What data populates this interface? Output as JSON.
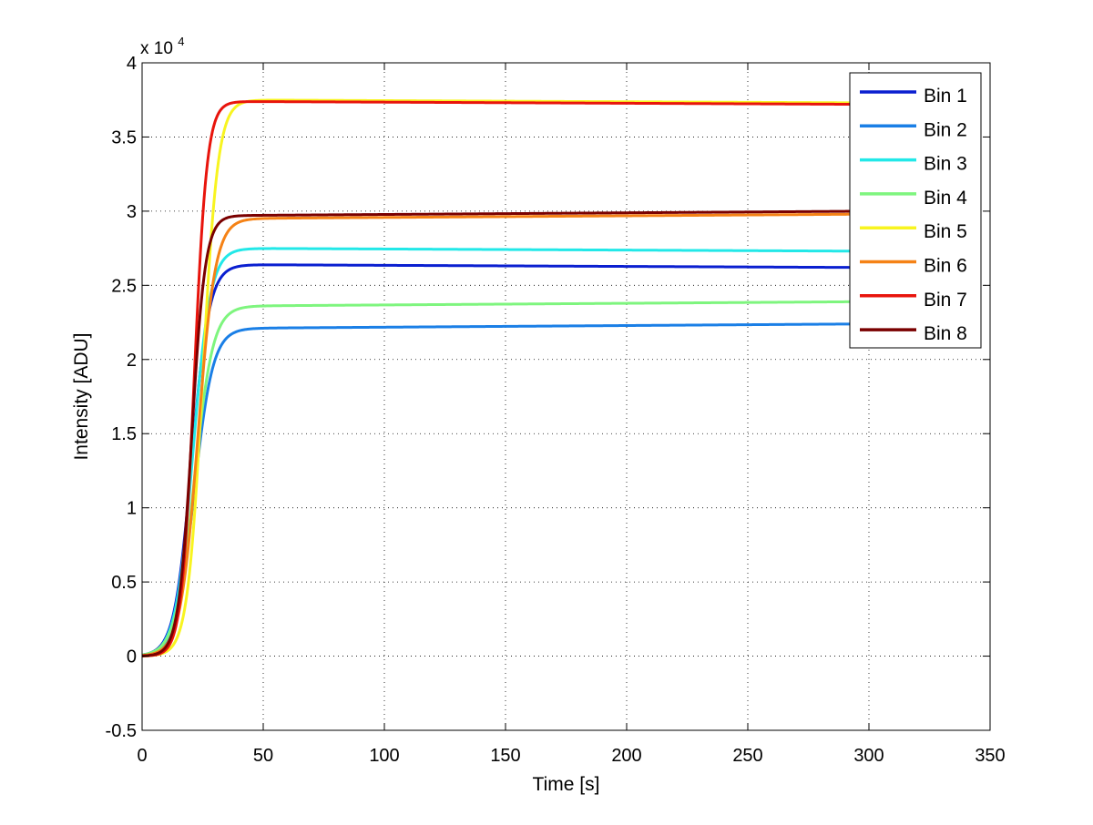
{
  "chart_data": {
    "type": "line",
    "title": "",
    "xlabel": "Time [s]",
    "ylabel": "Intensity [ADU]",
    "y_exponent_label": "x 10",
    "y_exponent": "4",
    "xlim": [
      0,
      350
    ],
    "ylim": [
      -0.5,
      4
    ],
    "xticks": [
      0,
      50,
      100,
      150,
      200,
      250,
      300,
      350
    ],
    "yticks": [
      -0.5,
      0,
      0.5,
      1,
      1.5,
      2,
      2.5,
      3,
      3.5,
      4
    ],
    "grid": true,
    "legend_position": "top-right",
    "x_range": [
      0,
      300
    ],
    "series": [
      {
        "name": "Bin 1",
        "color": "#0a1fd0",
        "t0": 20.5,
        "k": 0.28,
        "plateau": 2.64,
        "final": 2.62
      },
      {
        "name": "Bin 2",
        "color": "#1a7fe6",
        "t0": 21.5,
        "k": 0.26,
        "plateau": 2.21,
        "final": 2.24
      },
      {
        "name": "Bin 3",
        "color": "#22e8e8",
        "t0": 21.0,
        "k": 0.28,
        "plateau": 2.75,
        "final": 2.73
      },
      {
        "name": "Bin 4",
        "color": "#7ef57e",
        "t0": 21.5,
        "k": 0.26,
        "plateau": 2.36,
        "final": 2.39
      },
      {
        "name": "Bin 5",
        "color": "#f8f420",
        "t0": 25.0,
        "k": 0.32,
        "plateau": 3.75,
        "final": 3.73
      },
      {
        "name": "Bin 6",
        "color": "#f58216",
        "t0": 23.0,
        "k": 0.28,
        "plateau": 2.95,
        "final": 2.98
      },
      {
        "name": "Bin 7",
        "color": "#e8140c",
        "t0": 21.5,
        "k": 0.38,
        "plateau": 3.74,
        "final": 3.72
      },
      {
        "name": "Bin 8",
        "color": "#7a0000",
        "t0": 20.5,
        "k": 0.36,
        "plateau": 2.97,
        "final": 3.0
      }
    ]
  }
}
